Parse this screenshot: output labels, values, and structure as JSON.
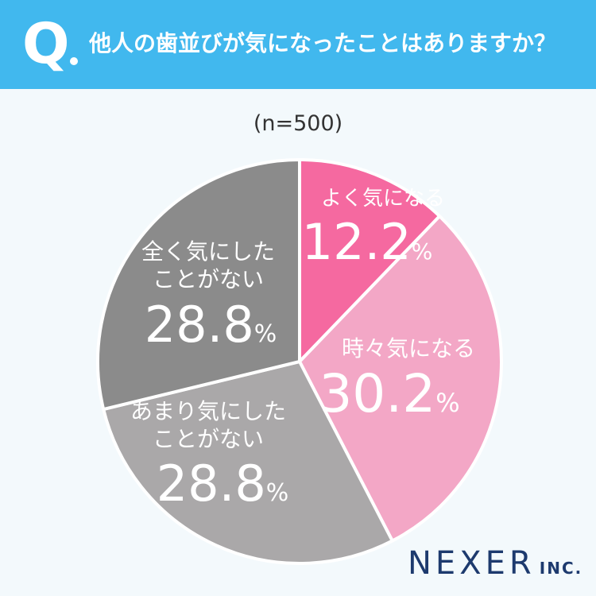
{
  "header": {
    "q_letter": "Q",
    "question": "他人の歯並びが気になったことはありますか？"
  },
  "sample_size": "(n=500)",
  "brand": {
    "name": "NEXER",
    "suffix": "INC."
  },
  "chart_data": {
    "type": "pie",
    "start_angle_deg": 0,
    "direction": "clockwise",
    "slices": [
      {
        "label": [
          "よく気になる"
        ],
        "value": 12.2,
        "display": "12.2",
        "unit": "%",
        "color": "#f569a0"
      },
      {
        "label": [
          "時々気になる"
        ],
        "value": 30.2,
        "display": "30.2",
        "unit": "%",
        "color": "#f3a7c6"
      },
      {
        "label": [
          "あまり気にした",
          "ことがない"
        ],
        "value": 28.8,
        "display": "28.8",
        "unit": "%",
        "color": "#aaa8a9"
      },
      {
        "label": [
          "全く気にした",
          "ことがない"
        ],
        "value": 28.8,
        "display": "28.8",
        "unit": "%",
        "color": "#8b8b8b"
      }
    ]
  }
}
